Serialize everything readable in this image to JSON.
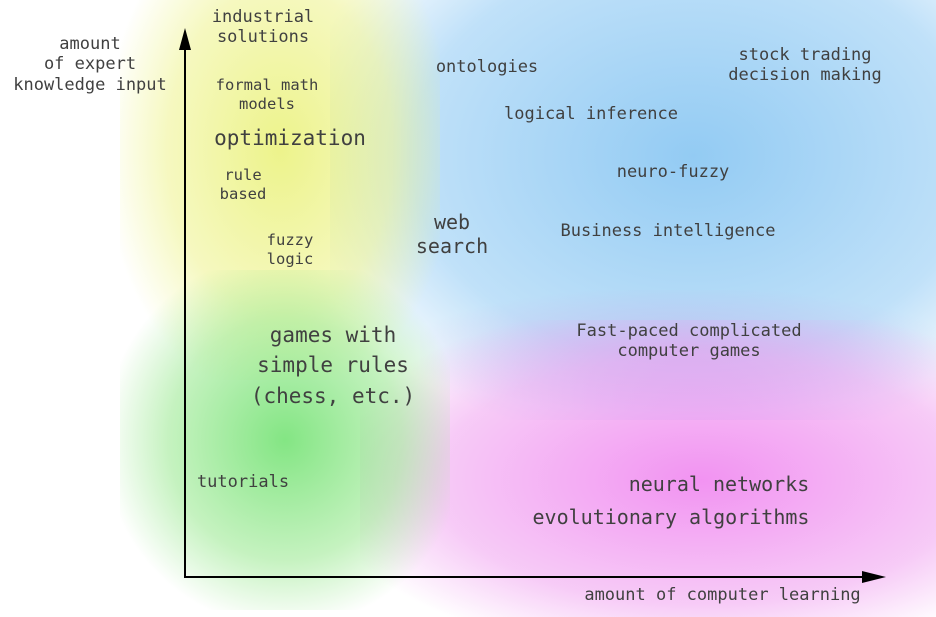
{
  "y_axis_label": "amount\nof expert\nknowledge input",
  "x_axis_label": "amount of computer learning",
  "regions": {
    "industrial_solutions": "industrial\nsolutions",
    "formal_math_models": "formal math\nmodels",
    "optimization": "optimization",
    "rule_based": "rule\nbased",
    "fuzzy_logic": "fuzzy\nlogic",
    "web_search": "web\nsearch",
    "games_simple": "games with\nsimple rules\n(chess, etc.)",
    "tutorials": "tutorials",
    "ontologies": "ontologies",
    "stock_trading": "stock trading\ndecision making",
    "logical_inference": "logical inference",
    "neuro_fuzzy": "neuro-fuzzy",
    "business_intelligence": "Business intelligence",
    "fast_paced_games": "Fast-paced complicated\ncomputer games",
    "neural_networks": "neural networks",
    "evolutionary_algorithms": "evolutionary algorithms"
  },
  "colors": {
    "yellow_zone": "#e8f06e",
    "green_zone": "#6ee16e",
    "blue_zone": "#78bef0",
    "pink_zone": "#ee78ee",
    "axis": "#000000",
    "text": "#404040"
  }
}
